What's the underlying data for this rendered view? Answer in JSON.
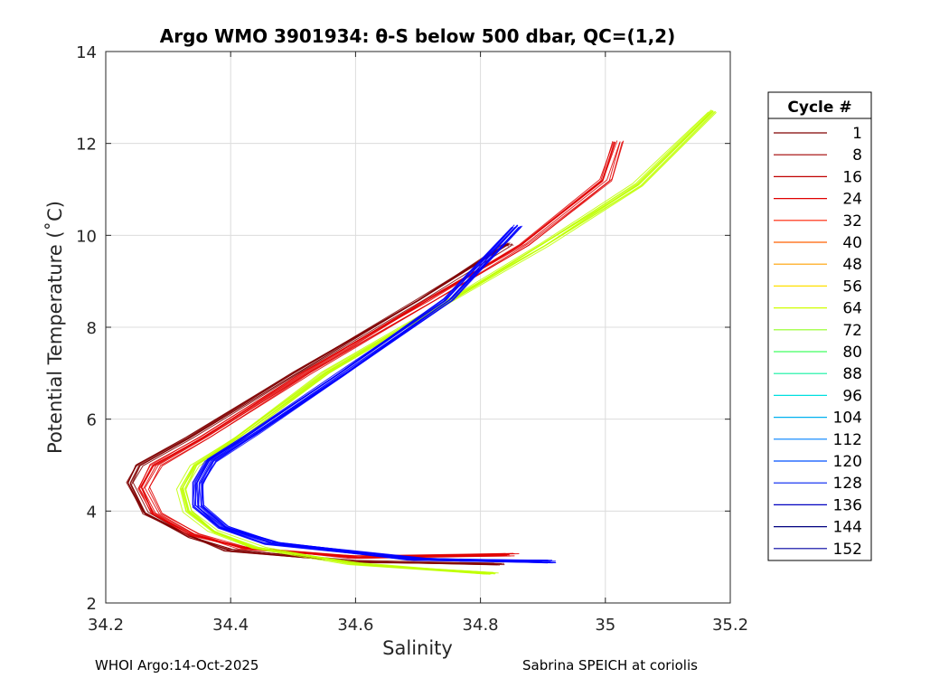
{
  "chart_data": {
    "type": "line",
    "title": "Argo WMO 3901934: θ-S below 500 dbar,  QC=(1,2)",
    "xlabel": "Salinity",
    "ylabel": "Potential Temperature (˚C)",
    "xlim": [
      34.2,
      35.2
    ],
    "ylim": [
      2,
      14
    ],
    "xticks": [
      34.2,
      34.4,
      34.6,
      34.8,
      35,
      35.2
    ],
    "xtick_labels": [
      "34.2",
      "34.4",
      "34.6",
      "34.8",
      "35",
      "35.2"
    ],
    "yticks": [
      2,
      4,
      6,
      8,
      10,
      12,
      14
    ],
    "ytick_labels": [
      "2",
      "4",
      "6",
      "8",
      "10",
      "12",
      "14"
    ],
    "grid": true,
    "legend": {
      "title": "Cycle #",
      "placement": "right-outside",
      "entries": [
        "1",
        "8",
        "16",
        "24",
        "32",
        "40",
        "48",
        "56",
        "64",
        "72",
        "80",
        "88",
        "96",
        "104",
        "112",
        "120",
        "128",
        "136",
        "144",
        "152"
      ],
      "colors": [
        "#800000",
        "#a00000",
        "#c00000",
        "#e00000",
        "#ff2000",
        "#ff6000",
        "#ffa000",
        "#ffe000",
        "#d0ff00",
        "#90ff20",
        "#40ff60",
        "#10f0a0",
        "#00e0e0",
        "#00b0f0",
        "#0080ff",
        "#0050ff",
        "#0020f0",
        "#0000c0",
        "#000080",
        "#0000a0"
      ]
    },
    "series_groups": [
      {
        "name": "cycles 1-8",
        "color": "#800000",
        "count": 8,
        "x": [
          34.83,
          34.6,
          34.4,
          34.33,
          34.26,
          34.235,
          34.25,
          34.33,
          34.5,
          34.7,
          34.84,
          34.84,
          34.84,
          34.84,
          34.84,
          34.84
        ],
        "y": [
          2.85,
          2.9,
          3.15,
          3.45,
          3.95,
          4.6,
          5.0,
          5.6,
          7.0,
          8.6,
          9.8,
          9.8,
          9.8,
          9.8,
          9.8,
          9.8
        ]
      },
      {
        "name": "cycles 16-40",
        "color": "#e00000",
        "count": 10,
        "x": [
          34.85,
          34.6,
          34.42,
          34.34,
          34.28,
          34.26,
          34.28,
          34.36,
          34.52,
          34.72,
          34.87,
          35.0,
          35.02
        ],
        "y": [
          3.05,
          3.0,
          3.2,
          3.5,
          3.95,
          4.5,
          5.0,
          5.6,
          7.0,
          8.6,
          9.8,
          11.2,
          12.05
        ]
      },
      {
        "name": "cycles 48-80",
        "color": "#c0ff00",
        "count": 10,
        "x": [
          34.82,
          34.6,
          34.44,
          34.37,
          34.33,
          34.32,
          34.34,
          34.41,
          34.55,
          34.75,
          34.9,
          35.05,
          35.17
        ],
        "y": [
          2.65,
          2.85,
          3.2,
          3.55,
          4.0,
          4.5,
          5.0,
          5.6,
          7.0,
          8.6,
          9.8,
          11.1,
          12.7
        ]
      },
      {
        "name": "cycles 88-152",
        "color": "#0000ff",
        "count": 16,
        "x": [
          34.91,
          34.7,
          34.47,
          34.39,
          34.35,
          34.35,
          34.37,
          34.44,
          34.58,
          34.75,
          34.86
        ],
        "y": [
          2.9,
          2.95,
          3.3,
          3.65,
          4.1,
          4.6,
          5.1,
          5.7,
          7.0,
          8.6,
          10.2
        ]
      }
    ]
  },
  "footer": {
    "left": "WHOI Argo:14-Oct-2025",
    "right": "Sabrina SPEICH at coriolis"
  }
}
